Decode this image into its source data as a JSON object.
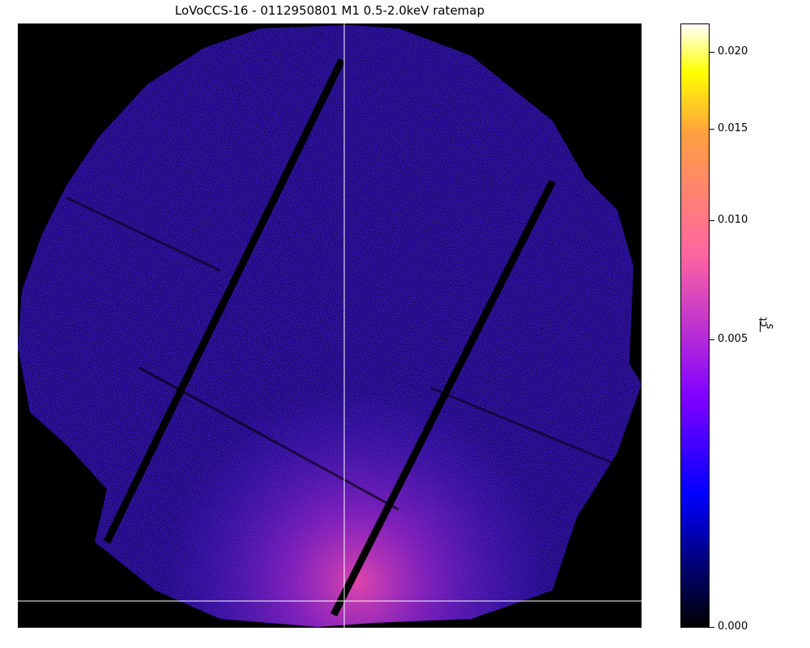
{
  "title": "LoVoCCS-16 - 0112950801 M1 0.5-2.0keV ratemap",
  "colorbar": {
    "unit_numerator": "ct",
    "unit_denominator": "s",
    "scale": "power-like (sqrt-stretched)",
    "colormap": "gnuplot2",
    "colors": [
      "#000000",
      "#0000ff",
      "#7f00ff",
      "#ff66a0",
      "#ffa040",
      "#ffff00",
      "#ffffff"
    ],
    "ticks": [
      {
        "label": "0.020",
        "value": 0.02
      },
      {
        "label": "0.015",
        "value": 0.015
      },
      {
        "label": "0.010",
        "value": 0.01
      },
      {
        "label": "0.005",
        "value": 0.005
      },
      {
        "label": "0.000",
        "value": 0.0
      }
    ],
    "vmax": 0.022
  },
  "image": {
    "description_of_content": "",
    "crosshair": true
  }
}
